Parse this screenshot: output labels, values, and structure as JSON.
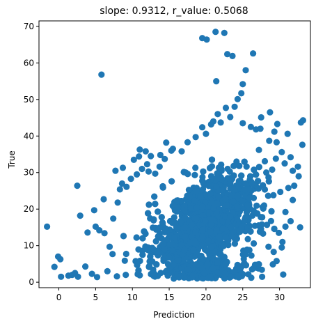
{
  "chart_data": {
    "type": "scatter",
    "title": "slope: 0.9312, r_value: 0.5068",
    "xlabel": "Prediction",
    "ylabel": "True",
    "xlim": [
      -2.7,
      34.2
    ],
    "ylim": [
      -1.5,
      71.5
    ],
    "xticks": [
      0,
      5,
      10,
      15,
      20,
      25,
      30
    ],
    "yticks": [
      0,
      10,
      20,
      30,
      40,
      50,
      60,
      70
    ],
    "grid": false,
    "color": "#1f77b4",
    "dense_region": {
      "x_center": 20,
      "x_spread": 5,
      "y_min": 1,
      "y_max": 40,
      "count": 2200
    },
    "points": [
      [
        -1.6,
        15.2
      ],
      [
        -0.6,
        4.2
      ],
      [
        -0.1,
        7.0
      ],
      [
        0.2,
        6.3
      ],
      [
        0.3,
        1.5
      ],
      [
        1.3,
        1.8
      ],
      [
        1.8,
        2.0
      ],
      [
        2.2,
        2.5
      ],
      [
        2.6,
        1.5
      ],
      [
        2.5,
        26.4
      ],
      [
        2.9,
        18.2
      ],
      [
        3.6,
        4.3
      ],
      [
        3.9,
        13.6
      ],
      [
        4.8,
        19.7
      ],
      [
        4.5,
        2.3
      ],
      [
        5.0,
        15.2
      ],
      [
        5.5,
        14.2
      ],
      [
        6.1,
        22.7
      ],
      [
        6.2,
        13.4
      ],
      [
        5.2,
        1.4
      ],
      [
        5.8,
        56.8
      ],
      [
        7.3,
        7.7
      ],
      [
        7.7,
        30.5
      ],
      [
        8.3,
        25.4
      ],
      [
        8.7,
        31.3
      ],
      [
        10.2,
        33.5
      ],
      [
        10.9,
        34.4
      ],
      [
        11.0,
        36.3
      ],
      [
        11.8,
        35.8
      ],
      [
        12.0,
        32.3
      ],
      [
        12.5,
        34.5
      ],
      [
        13.8,
        34.8
      ],
      [
        14.4,
        33.7
      ],
      [
        14.6,
        38.2
      ],
      [
        15.3,
        36.0
      ],
      [
        15.5,
        36.5
      ],
      [
        16.7,
        35.8
      ],
      [
        17.5,
        38.3
      ],
      [
        18.6,
        39.7
      ],
      [
        19.5,
        42.4
      ],
      [
        20.0,
        40.6
      ],
      [
        20.7,
        43.2
      ],
      [
        21.0,
        44.0
      ],
      [
        21.6,
        46.0
      ],
      [
        22.0,
        43.7
      ],
      [
        22.7,
        47.7
      ],
      [
        23.3,
        45.2
      ],
      [
        23.9,
        48.0
      ],
      [
        24.3,
        50.1
      ],
      [
        24.8,
        51.7
      ],
      [
        25.0,
        54.2
      ],
      [
        25.4,
        58.0
      ],
      [
        25.0,
        43.5
      ],
      [
        26.1,
        42.5
      ],
      [
        26.8,
        41.8
      ],
      [
        27.4,
        42.0
      ],
      [
        27.5,
        45.1
      ],
      [
        28.7,
        46.5
      ],
      [
        28.6,
        38.7
      ],
      [
        29.3,
        41.2
      ],
      [
        29.6,
        38.3
      ],
      [
        29.7,
        43.3
      ],
      [
        29.5,
        33.8
      ],
      [
        30.3,
        35.6
      ],
      [
        30.7,
        32.5
      ],
      [
        31.1,
        40.6
      ],
      [
        31.5,
        34.2
      ],
      [
        31.8,
        30.5
      ],
      [
        32.0,
        26.4
      ],
      [
        32.5,
        31.6
      ],
      [
        32.6,
        29.0
      ],
      [
        32.9,
        43.7
      ],
      [
        33.2,
        44.3
      ],
      [
        33.1,
        37.6
      ],
      [
        32.8,
        15.0
      ],
      [
        29.6,
        5.8
      ],
      [
        30.5,
        2.1
      ],
      [
        30.8,
        15.2
      ],
      [
        30.3,
        9.5
      ],
      [
        29.2,
        8.3
      ],
      [
        28.5,
        9.7
      ],
      [
        27.6,
        3.4
      ],
      [
        26.8,
        4.6
      ],
      [
        27.2,
        4.9
      ],
      [
        26.5,
        10.6
      ],
      [
        25.9,
        8.8
      ],
      [
        25.2,
        5.2
      ],
      [
        24.6,
        3.9
      ],
      [
        23.8,
        2.8
      ],
      [
        22.6,
        2.4
      ],
      [
        19.5,
        66.8
      ],
      [
        20.1,
        66.4
      ],
      [
        21.3,
        68.5
      ],
      [
        22.5,
        68.2
      ],
      [
        22.9,
        62.4
      ],
      [
        23.6,
        61.9
      ],
      [
        26.4,
        62.6
      ],
      [
        21.4,
        55.0
      ],
      [
        30.1,
        24.7
      ],
      [
        31.2,
        25.8
      ],
      [
        31.8,
        22.5
      ],
      [
        31.5,
        16.7
      ],
      [
        30.8,
        19.2
      ],
      [
        29.9,
        13.5
      ],
      [
        30.4,
        11.0
      ],
      [
        7.9,
        1.6
      ],
      [
        9.1,
        2.0
      ],
      [
        11.0,
        1.9
      ],
      [
        12.9,
        1.7
      ],
      [
        14.8,
        1.8
      ],
      [
        16.5,
        1.6
      ],
      [
        18.2,
        1.8
      ],
      [
        6.6,
        3.0
      ],
      [
        6.9,
        9.7
      ],
      [
        7.4,
        17.4
      ],
      [
        8.0,
        21.8
      ],
      [
        8.6,
        27.0
      ],
      [
        9.2,
        26.1
      ],
      [
        9.8,
        28.3
      ],
      [
        10.6,
        29.5
      ],
      [
        11.3,
        31.0
      ],
      [
        12.2,
        30.3
      ],
      [
        13.1,
        29.7
      ],
      [
        13.7,
        31.6
      ],
      [
        27.2,
        36.2
      ],
      [
        28.0,
        33.1
      ],
      [
        28.5,
        28.7
      ],
      [
        29.0,
        30.8
      ],
      [
        27.9,
        21.0
      ],
      [
        28.3,
        15.7
      ]
    ]
  }
}
